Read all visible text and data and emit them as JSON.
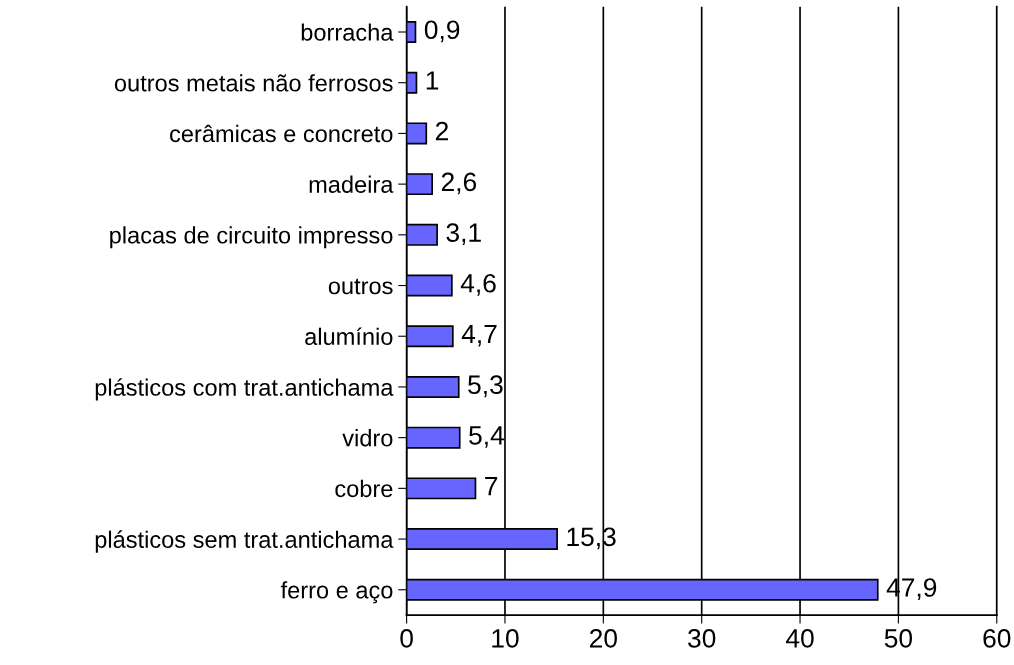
{
  "chart_data": {
    "type": "bar",
    "orientation": "horizontal",
    "categories": [
      "borracha",
      "outros metais não ferrosos",
      "cerâmicas e concreto",
      "madeira",
      "placas de circuito impresso",
      "outros",
      "alumínio",
      "plásticos com trat.antichama",
      "vidro",
      "cobre",
      "plásticos sem trat.antichama",
      "ferro e aço"
    ],
    "values": [
      0.9,
      1,
      2,
      2.6,
      3.1,
      4.6,
      4.7,
      5.3,
      5.4,
      7,
      15.3,
      47.9
    ],
    "value_labels": [
      "0,9",
      "1",
      "2",
      "2,6",
      "3,1",
      "4,6",
      "4,7",
      "5,3",
      "5,4",
      "7",
      "15,3",
      "47,9"
    ],
    "color": "#6666ff",
    "xlim": [
      0,
      60
    ],
    "xticks": [
      0,
      10,
      20,
      30,
      40,
      50,
      60
    ],
    "grid": "x",
    "legend": false
  }
}
